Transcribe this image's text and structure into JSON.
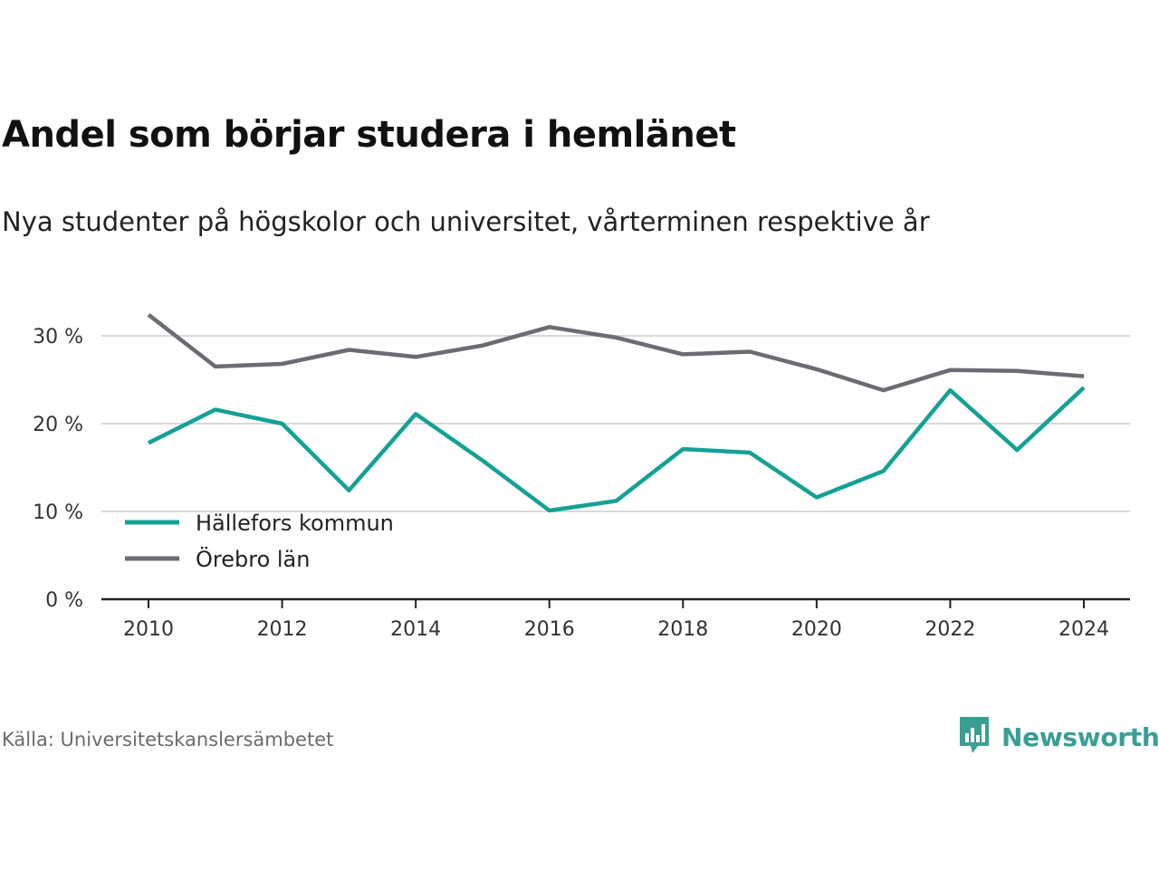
{
  "title": "Andel som börjar studera i hemlänet",
  "subtitle": "Nya studenter på högskolor och universitet, vårterminen respektive år",
  "source": "Källa: Universitetskanslersämbetet",
  "brand": {
    "name": "Newsworthy",
    "icon": "newsworthy-logo-icon",
    "color": "#3a9e94"
  },
  "chart_data": {
    "type": "line",
    "x": [
      2010,
      2011,
      2012,
      2013,
      2014,
      2015,
      2016,
      2017,
      2018,
      2019,
      2020,
      2021,
      2022,
      2023,
      2024
    ],
    "xticks": [
      "2010",
      "2012",
      "2014",
      "2016",
      "2018",
      "2020",
      "2022",
      "2024"
    ],
    "yticks": [
      "0 %",
      "10 %",
      "20 %",
      "30 %"
    ],
    "ylim": [
      0,
      30
    ],
    "grid": true,
    "legend_placement": "bottom-left",
    "series": [
      {
        "name": "Hällefors kommun",
        "color": "#14a195",
        "values": [
          17.8,
          21.6,
          20.0,
          12.4,
          21.1,
          15.8,
          10.1,
          11.2,
          17.1,
          16.7,
          11.6,
          14.6,
          23.8,
          17.0,
          24.1
        ]
      },
      {
        "name": "Örebro län",
        "color": "#6d6b72",
        "values": [
          32.4,
          26.5,
          26.8,
          28.4,
          27.6,
          28.9,
          31.0,
          29.8,
          27.9,
          28.2,
          26.2,
          23.8,
          26.1,
          26.0,
          25.4
        ]
      }
    ]
  }
}
